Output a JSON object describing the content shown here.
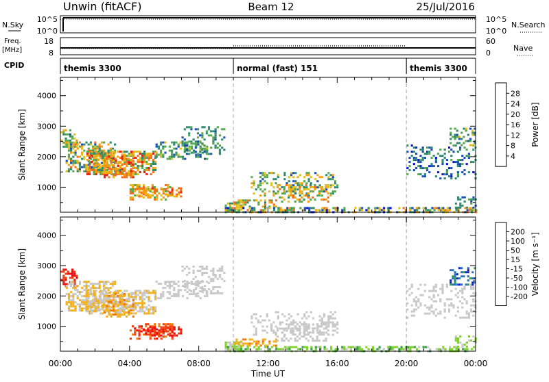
{
  "header": {
    "title": "Unwin (fitACF)",
    "beam": "Beam 12",
    "date": "25/Jul/2016"
  },
  "top_panels": {
    "nsky_label": "N.Sky",
    "nsearch_label": "N.Search",
    "nsky_ticks": [
      "10^5",
      "10^0"
    ],
    "nsearch_ticks": [
      "10^5",
      "10^0"
    ],
    "freq_label": "Freq.",
    "freq_unit": "[MHz]",
    "freq_ticks": [
      "18",
      "8"
    ],
    "nave_label": "Nave",
    "nave_ticks": [
      "60",
      "0"
    ],
    "cpid_label": "CPID"
  },
  "cpid_segments": [
    {
      "label": "themis 3300",
      "start_h": 0,
      "end_h": 10
    },
    {
      "label": "normal (fast) 151",
      "start_h": 10,
      "end_h": 20
    },
    {
      "label": "themis 3300",
      "start_h": 20,
      "end_h": 24
    }
  ],
  "chart_data": [
    {
      "type": "heatmap",
      "name": "Power",
      "ylabel": "Slant Range [km]",
      "xlabel": "",
      "ylim": [
        180,
        4600
      ],
      "xlim": [
        0,
        24
      ],
      "yticks": [
        1000,
        2000,
        3000,
        4000
      ],
      "colorbar_label": "Power [dB]",
      "colorbar_ticks": [
        "4",
        "8",
        "12",
        "16",
        "20",
        "24",
        "28"
      ],
      "colorbar_colors": [
        "#0a14d8",
        "#1c50b0",
        "#2f8a70",
        "#58a850",
        "#e0c020",
        "#f5a010",
        "#f07020",
        "#e82010"
      ]
    },
    {
      "type": "heatmap",
      "name": "Velocity",
      "ylabel": "Slant Range [km]",
      "xlabel": "Time UT",
      "ylim": [
        180,
        4600
      ],
      "xlim": [
        0,
        24
      ],
      "yticks": [
        1000,
        2000,
        3000,
        4000
      ],
      "xticks": [
        "00:00",
        "04:00",
        "08:00",
        "12:00",
        "16:00",
        "20:00",
        "00:00"
      ],
      "colorbar_label": "Velocity [m s⁻¹]",
      "colorbar_ticks": [
        "200",
        "100",
        "50",
        "15",
        "-15",
        "-50",
        "-100",
        "-200"
      ],
      "colorbar_colors": [
        "#1028c8",
        "#2870c0",
        "#30a040",
        "#80d030",
        "#c8c8c8",
        "#f0b020",
        "#f07810",
        "#f04010",
        "#e81010"
      ]
    }
  ]
}
